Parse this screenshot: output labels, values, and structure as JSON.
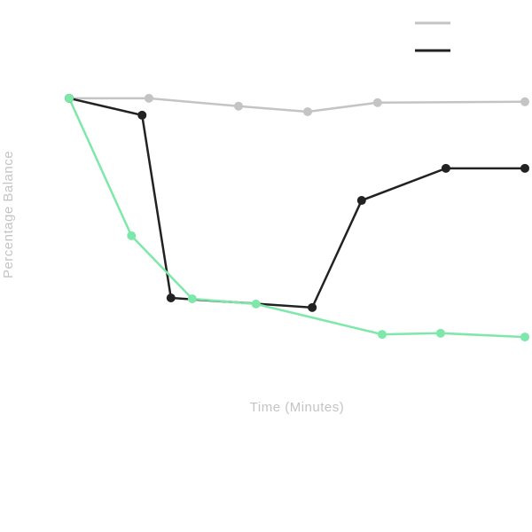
{
  "chart_data": {
    "type": "line",
    "x_label": "Time (Minutes)",
    "y_label": "Percentage Balance",
    "xlim": [
      0,
      60
    ],
    "ylim": [
      0,
      120
    ],
    "series": [
      {
        "color": "#c4c4c4",
        "x": [
          0,
          10.5,
          22.3,
          31.4,
          40.6,
          60
        ],
        "values": [
          100,
          100,
          97.3,
          95.4,
          98.5,
          98.8
        ]
      },
      {
        "color": "#222222",
        "x": [
          0,
          9.6,
          13.4,
          32,
          38.5,
          49.6,
          60
        ],
        "values": [
          100,
          94.2,
          31.6,
          28.3,
          65,
          76,
          76
        ]
      },
      {
        "color": "#7ee8aa",
        "x": [
          0,
          8.2,
          16.2,
          24.6,
          41.2,
          48.9,
          60
        ],
        "values": [
          100,
          52.9,
          31.3,
          29.5,
          19.1,
          19.5,
          18.2
        ]
      }
    ]
  }
}
